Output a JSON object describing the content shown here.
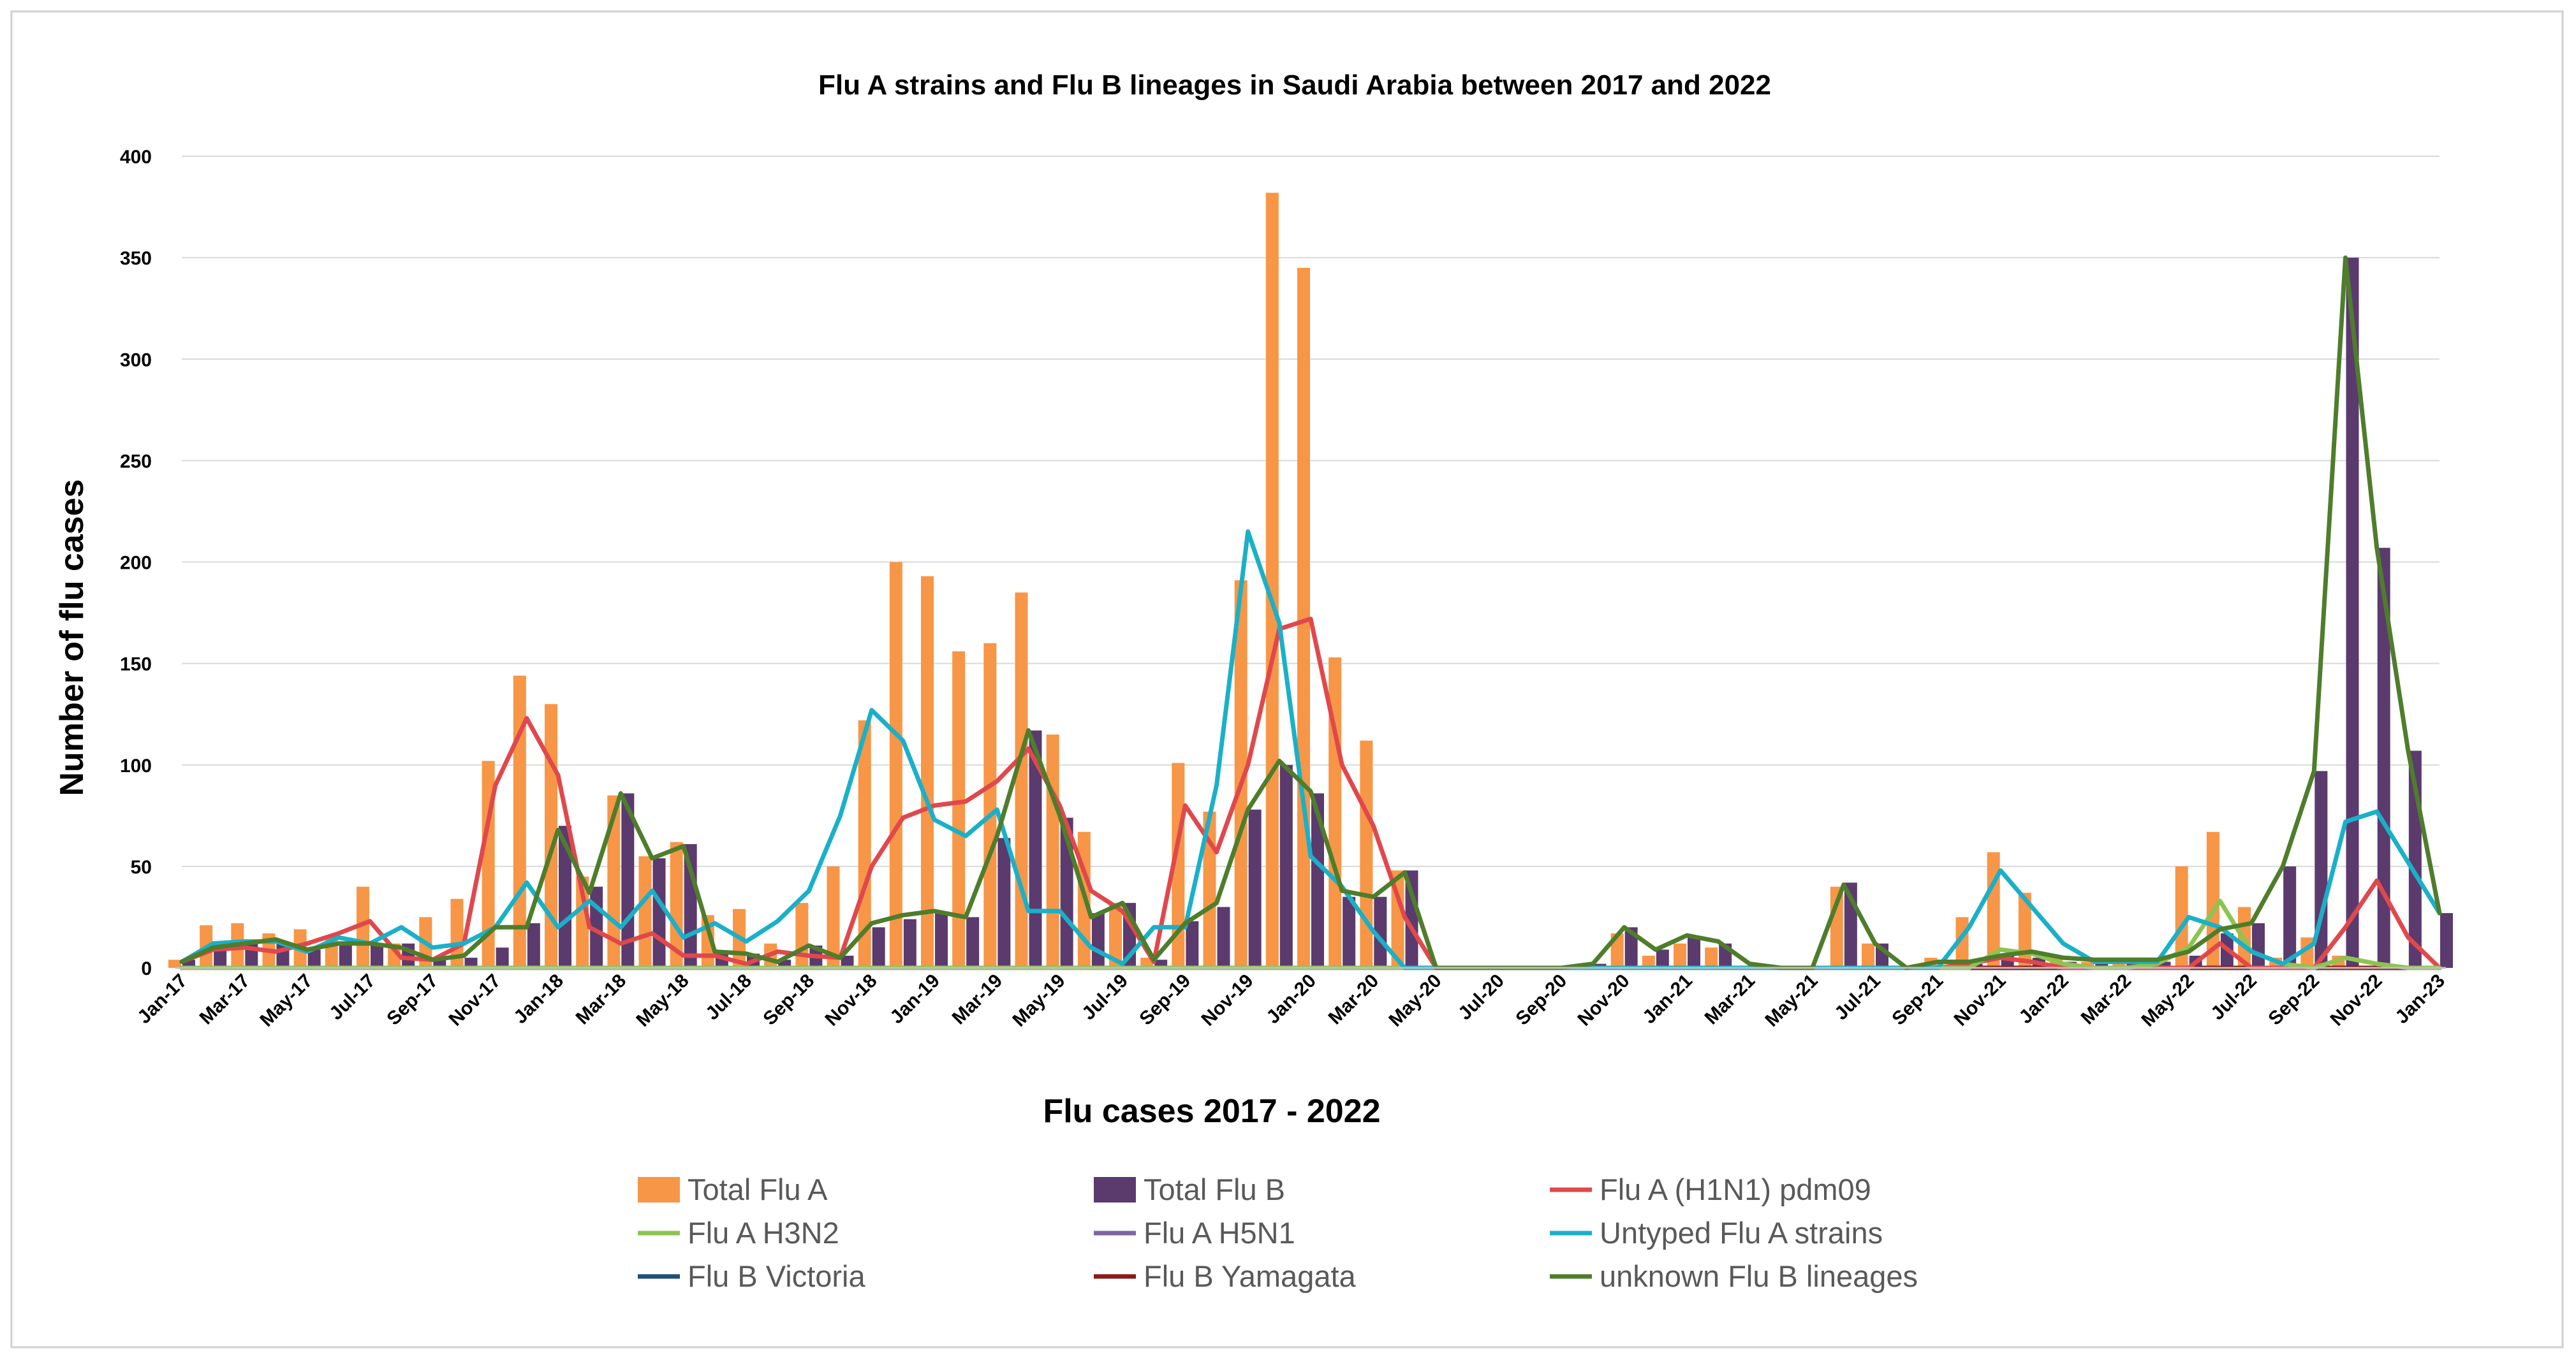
{
  "chart_data": {
    "type": "bar",
    "title": "Flu A strains and Flu B lineages in Saudi Arabia between 2017 and 2022",
    "xlabel": "Flu cases 2017 - 2022",
    "ylabel": "Number of flu cases",
    "ylim": [
      0,
      400
    ],
    "yticks": [
      0,
      50,
      100,
      150,
      200,
      250,
      300,
      350,
      400
    ],
    "grid": true,
    "legend_position": "bottom",
    "categories": [
      "Jan-17",
      "Feb-17",
      "Mar-17",
      "Apr-17",
      "May-17",
      "Jun-17",
      "Jul-17",
      "Aug-17",
      "Sep-17",
      "Oct-17",
      "Nov-17",
      "Dec-17",
      "Jan-18",
      "Feb-18",
      "Mar-18",
      "Apr-18",
      "May-18",
      "Jun-18",
      "Jul-18",
      "Aug-18",
      "Sep-18",
      "Oct-18",
      "Nov-18",
      "Dec-18",
      "Jan-19",
      "Feb-19",
      "Mar-19",
      "Apr-19",
      "May-19",
      "Jun-19",
      "Jul-19",
      "Aug-19",
      "Sep-19",
      "Oct-19",
      "Nov-19",
      "Dec-19",
      "Jan-20",
      "Feb-20",
      "Mar-20",
      "Apr-20",
      "May-20",
      "Jun-20",
      "Jul-20",
      "Aug-20",
      "Sep-20",
      "Oct-20",
      "Nov-20",
      "Dec-20",
      "Jan-21",
      "Feb-21",
      "Mar-21",
      "Apr-21",
      "May-21",
      "Jun-21",
      "Jul-21",
      "Aug-21",
      "Sep-21",
      "Oct-21",
      "Nov-21",
      "Dec-21",
      "Jan-22",
      "Feb-22",
      "Mar-22",
      "Apr-22",
      "May-22",
      "Jun-22",
      "Jul-22",
      "Aug-22",
      "Sep-22",
      "Oct-22",
      "Nov-22",
      "Dec-22",
      "Jan-23"
    ],
    "x_tick_labels": [
      "Jan-17",
      "Mar-17",
      "May-17",
      "Jul-17",
      "Sep-17",
      "Nov-17",
      "Jan-18",
      "Mar-18",
      "May-18",
      "Jul-18",
      "Sep-18",
      "Nov-18",
      "Jan-19",
      "Mar-19",
      "May-19",
      "Jul-19",
      "Sep-19",
      "Nov-19",
      "Jan-20",
      "Mar-20",
      "May-20",
      "Jul-20",
      "Sep-20",
      "Nov-20",
      "Jan-21",
      "Mar-21",
      "May-21",
      "Jul-21",
      "Sep-21",
      "Nov-21",
      "Jan-22",
      "Mar-22",
      "May-22",
      "Jul-22",
      "Sep-22",
      "Nov-22",
      "Jan-23"
    ],
    "series": [
      {
        "name": "Total Flu A",
        "kind": "bar",
        "color": "#F79646",
        "values": [
          4,
          21,
          22,
          17,
          19,
          15,
          40,
          12,
          25,
          34,
          102,
          144,
          130,
          45,
          85,
          55,
          62,
          26,
          29,
          12,
          32,
          50,
          122,
          200,
          193,
          156,
          160,
          185,
          115,
          67,
          32,
          5,
          101,
          77,
          191,
          382,
          345,
          153,
          112,
          48,
          0,
          0,
          0,
          0,
          0,
          0,
          17,
          6,
          12,
          10,
          1,
          0,
          0,
          40,
          12,
          0,
          5,
          25,
          57,
          37,
          5,
          3,
          3,
          3,
          50,
          67,
          30,
          5,
          15,
          6,
          0,
          0,
          0
        ]
      },
      {
        "name": "Total Flu B",
        "kind": "bar",
        "color": "#5B3A6E",
        "values": [
          4,
          10,
          12,
          12,
          9,
          12,
          12,
          12,
          5,
          5,
          10,
          22,
          70,
          40,
          86,
          54,
          61,
          8,
          7,
          4,
          11,
          6,
          20,
          24,
          27,
          25,
          64,
          117,
          74,
          27,
          32,
          4,
          23,
          30,
          78,
          100,
          86,
          35,
          35,
          48,
          0,
          0,
          0,
          0,
          0,
          2,
          20,
          9,
          15,
          12,
          1,
          0,
          0,
          42,
          12,
          0,
          1,
          2,
          6,
          5,
          3,
          3,
          3,
          3,
          6,
          17,
          22,
          50,
          97,
          350,
          207,
          107,
          27
        ]
      },
      {
        "name": "Flu A (H1N1) pdm09",
        "kind": "line",
        "color": "#E0484C",
        "values": [
          3,
          9,
          10,
          8,
          12,
          17,
          23,
          5,
          4,
          12,
          90,
          123,
          95,
          20,
          12,
          17,
          6,
          6,
          2,
          8,
          6,
          5,
          50,
          74,
          80,
          82,
          92,
          108,
          80,
          38,
          28,
          3,
          80,
          57,
          100,
          167,
          172,
          100,
          70,
          25,
          0,
          0,
          0,
          0,
          0,
          0,
          0,
          0,
          0,
          0,
          0,
          0,
          0,
          0,
          0,
          0,
          0,
          2,
          5,
          3,
          0,
          0,
          0,
          0,
          0,
          12,
          0,
          0,
          0,
          20,
          43,
          15,
          0
        ]
      },
      {
        "name": "Flu A H3N2",
        "kind": "line",
        "color": "#8DC451",
        "values": [
          0,
          0,
          0,
          0,
          0,
          0,
          0,
          0,
          0,
          0,
          0,
          0,
          0,
          0,
          0,
          0,
          0,
          0,
          0,
          0,
          0,
          0,
          0,
          0,
          0,
          0,
          0,
          0,
          0,
          0,
          0,
          0,
          0,
          0,
          0,
          0,
          0,
          0,
          0,
          0,
          0,
          0,
          0,
          0,
          0,
          0,
          0,
          0,
          0,
          0,
          0,
          0,
          0,
          0,
          0,
          0,
          0,
          0,
          9,
          7,
          2,
          0,
          0,
          2,
          10,
          33,
          8,
          2,
          0,
          5,
          2,
          0,
          0
        ]
      },
      {
        "name": "Flu A H5N1",
        "kind": "line",
        "color": "#8064A2",
        "values": [
          0,
          0,
          0,
          0,
          0,
          0,
          0,
          0,
          0,
          0,
          0,
          0,
          0,
          0,
          0,
          0,
          0,
          0,
          0,
          0,
          0,
          0,
          0,
          0,
          0,
          0,
          0,
          0,
          0,
          0,
          0,
          0,
          0,
          0,
          0,
          0,
          0,
          0,
          0,
          0,
          0,
          0,
          0,
          0,
          0,
          0,
          0,
          0,
          0,
          0,
          0,
          0,
          0,
          0,
          0,
          0,
          0,
          0,
          0,
          0,
          0,
          0,
          0,
          0,
          0,
          0,
          0,
          0,
          0,
          0,
          0,
          0,
          0
        ]
      },
      {
        "name": "Untyped Flu A strains",
        "kind": "line",
        "color": "#1AB0C8",
        "values": [
          3,
          12,
          13,
          13,
          8,
          15,
          12,
          20,
          10,
          12,
          20,
          42,
          20,
          33,
          20,
          38,
          15,
          22,
          13,
          23,
          38,
          75,
          127,
          112,
          73,
          65,
          78,
          28,
          28,
          10,
          2,
          20,
          20,
          90,
          215,
          170,
          55,
          40,
          18,
          0,
          0,
          0,
          0,
          0,
          0,
          0,
          0,
          0,
          0,
          0,
          0,
          0,
          0,
          0,
          0,
          0,
          0,
          20,
          48,
          30,
          12,
          3,
          3,
          3,
          25,
          20,
          8,
          2,
          12,
          72,
          77,
          52,
          27
        ]
      },
      {
        "name": "Flu B Victoria",
        "kind": "line",
        "color": "#1F4E79",
        "values": [
          0,
          0,
          0,
          0,
          0,
          0,
          0,
          0,
          0,
          0,
          0,
          0,
          0,
          0,
          0,
          0,
          0,
          0,
          0,
          0,
          0,
          0,
          0,
          0,
          0,
          0,
          0,
          0,
          0,
          0,
          0,
          0,
          0,
          0,
          0,
          0,
          0,
          0,
          0,
          0,
          0,
          0,
          0,
          0,
          0,
          0,
          0,
          0,
          0,
          0,
          0,
          0,
          0,
          0,
          0,
          0,
          0,
          0,
          0,
          0,
          0,
          0,
          0,
          0,
          0,
          0,
          0,
          0,
          0,
          0,
          0,
          0,
          0
        ]
      },
      {
        "name": "Flu B Yamagata",
        "kind": "line",
        "color": "#8B1A1A",
        "values": [
          0,
          0,
          0,
          0,
          0,
          0,
          0,
          0,
          0,
          0,
          0,
          0,
          0,
          0,
          0,
          0,
          0,
          0,
          0,
          0,
          0,
          0,
          0,
          0,
          0,
          0,
          0,
          0,
          0,
          0,
          0,
          0,
          0,
          0,
          0,
          0,
          0,
          0,
          0,
          0,
          0,
          0,
          0,
          0,
          0,
          0,
          0,
          0,
          0,
          0,
          0,
          0,
          0,
          0,
          0,
          0,
          0,
          0,
          0,
          0,
          0,
          0,
          0,
          0,
          0,
          0,
          0,
          0,
          0,
          0,
          0,
          0,
          0
        ]
      },
      {
        "name": "unknown Flu B lineages",
        "kind": "line",
        "color": "#4E7D2B",
        "values": [
          3,
          10,
          12,
          14,
          9,
          12,
          12,
          10,
          4,
          6,
          20,
          20,
          68,
          37,
          86,
          54,
          60,
          8,
          7,
          3,
          11,
          5,
          22,
          26,
          28,
          25,
          65,
          117,
          75,
          25,
          32,
          4,
          22,
          32,
          78,
          102,
          87,
          38,
          35,
          47,
          0,
          0,
          0,
          0,
          0,
          2,
          20,
          9,
          16,
          13,
          2,
          0,
          0,
          41,
          12,
          0,
          3,
          3,
          6,
          8,
          5,
          4,
          4,
          4,
          8,
          19,
          22,
          50,
          97,
          350,
          207,
          107,
          27
        ]
      }
    ]
  },
  "legend": {
    "items": [
      {
        "label": "Total Flu A",
        "color": "#F79646",
        "kind": "bar"
      },
      {
        "label": "Total Flu B",
        "color": "#5B3A6E",
        "kind": "bar"
      },
      {
        "label": "Flu A (H1N1) pdm09",
        "color": "#E0484C",
        "kind": "line"
      },
      {
        "label": "Flu A H3N2",
        "color": "#8DC451",
        "kind": "line"
      },
      {
        "label": "Flu A H5N1",
        "color": "#8064A2",
        "kind": "line"
      },
      {
        "label": "Untyped Flu A strains",
        "color": "#1AB0C8",
        "kind": "line"
      },
      {
        "label": "Flu B Victoria",
        "color": "#1F4E79",
        "kind": "line"
      },
      {
        "label": "Flu B Yamagata",
        "color": "#8B1A1A",
        "kind": "line"
      },
      {
        "label": "unknown Flu B lineages",
        "color": "#4E7D2B",
        "kind": "line"
      }
    ]
  }
}
